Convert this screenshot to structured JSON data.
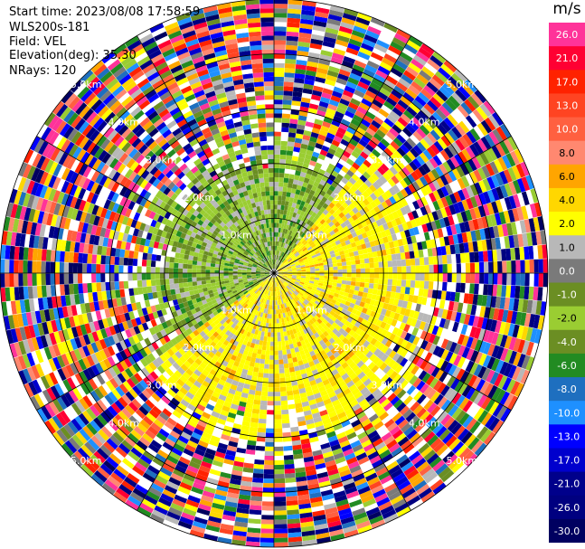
{
  "info": {
    "start_time": "Start time: 2023/08/08 17:58:59",
    "site": "WLS200s-181",
    "field": "Field: VEL",
    "elevation": "Elevation(deg): 35.30",
    "nrays": "NRays: 120"
  },
  "colorbar": {
    "unit": "m/s",
    "bins": [
      {
        "label": "26.0",
        "color": "#ff3399"
      },
      {
        "label": "21.0",
        "color": "#ff0033"
      },
      {
        "label": "17.0",
        "color": "#ff2200"
      },
      {
        "label": "13.0",
        "color": "#ff4422"
      },
      {
        "label": "10.0",
        "color": "#ff6040"
      },
      {
        "label": "8.0",
        "color": "#ff8870"
      },
      {
        "label": "6.0",
        "color": "#ffa500"
      },
      {
        "label": "4.0",
        "color": "#ffd700"
      },
      {
        "label": "2.0",
        "color": "#ffff00"
      },
      {
        "label": "1.0",
        "color": "#b8b8b8"
      },
      {
        "label": "0.0",
        "color": "#7a7a7a"
      },
      {
        "label": "-1.0",
        "color": "#6b8e23"
      },
      {
        "label": "-2.0",
        "color": "#9acd32"
      },
      {
        "label": "-4.0",
        "color": "#6b8e23"
      },
      {
        "label": "-6.0",
        "color": "#228b22"
      },
      {
        "label": "-8.0",
        "color": "#1e6fbf"
      },
      {
        "label": "-10.0",
        "color": "#1e90ff"
      },
      {
        "label": "-13.0",
        "color": "#0000ff"
      },
      {
        "label": "-17.0",
        "color": "#0000cd"
      },
      {
        "label": "-21.0",
        "color": "#00008b"
      },
      {
        "label": "-26.0",
        "color": "#000080"
      },
      {
        "label": "-30.0",
        "color": "#000060"
      }
    ]
  },
  "chart_data": {
    "type": "heatmap",
    "projection": "polar (PPI)",
    "field": "VEL",
    "units": "m/s",
    "nrays": 120,
    "range_rings_km": [
      {
        "range": 1.0,
        "label": "1.0km"
      },
      {
        "range": 2.0,
        "label": "2.0km"
      },
      {
        "range": 3.0,
        "label": "3.0km"
      },
      {
        "range": 4.0,
        "label": "4.0km"
      },
      {
        "range": 5.0,
        "label": "5.0km"
      }
    ],
    "color_scale_ticks": [
      26.0,
      21.0,
      17.0,
      13.0,
      10.0,
      8.0,
      6.0,
      4.0,
      2.0,
      1.0,
      0.0,
      -1.0,
      -2.0,
      -4.0,
      -6.0,
      -8.0,
      -10.0,
      -13.0,
      -17.0,
      -21.0,
      -26.0,
      -30.0
    ],
    "max_range_km": 5.0,
    "pattern": "receding (yellow/orange, +2 to +6 m/s) to the east and south within 2-3 km; approaching (green, -2 to -6 m/s) to the west and north within 2-3 km; noisy random values beyond ~3 km"
  }
}
